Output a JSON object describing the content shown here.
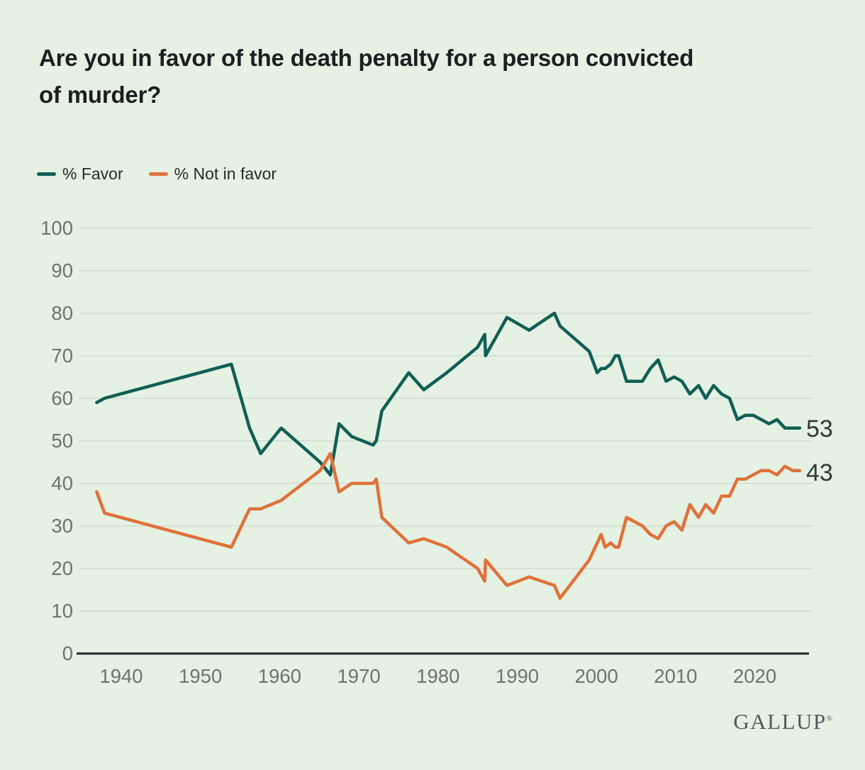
{
  "header": {
    "title": "Are you in favor of the death penalty for a person convicted of murder?"
  },
  "legend": {
    "items": [
      {
        "label": "% Favor",
        "color": "#115e54"
      },
      {
        "label": "% Not in favor",
        "color": "#e0713a"
      }
    ]
  },
  "chart_data": {
    "type": "line",
    "title": "Are you in favor of the death penalty for a person convicted of murder?",
    "xlabel": "",
    "ylabel": "",
    "xlim": [
      1935,
      2026
    ],
    "ylim": [
      0,
      100
    ],
    "x_ticks": [
      1940,
      1950,
      1960,
      1970,
      1980,
      1990,
      2000,
      2010,
      2020
    ],
    "y_ticks": [
      0,
      10,
      20,
      30,
      40,
      50,
      60,
      70,
      80,
      90,
      100
    ],
    "grid": "horizontal",
    "legend_position": "top-left",
    "x": [
      1936.9,
      1937.9,
      1953.9,
      1956.2,
      1957.6,
      1960.2,
      1965.1,
      1966.4,
      1967.5,
      1969.1,
      1971.8,
      1972.2,
      1972.9,
      1976.3,
      1978.2,
      1981.1,
      1985.0,
      1985.9,
      1986.0,
      1988.7,
      1991.5,
      1994.7,
      1995.4,
      1999.1,
      2000.1,
      2000.6,
      2001.1,
      2001.8,
      2002.4,
      2002.8,
      2003.8,
      2004.8,
      2005.8,
      2006.8,
      2007.8,
      2008.8,
      2009.8,
      2010.8,
      2011.8,
      2012.9,
      2013.8,
      2014.8,
      2015.8,
      2016.8,
      2017.8,
      2018.8,
      2019.8,
      2020.8,
      2021.8,
      2022.8,
      2023.8,
      2024.8
    ],
    "series": [
      {
        "name": "% Favor",
        "color": "#115e54",
        "end_label": "53",
        "values": [
          59,
          60,
          68,
          53,
          47,
          53,
          45,
          42,
          54,
          51,
          49,
          50,
          57,
          66,
          62,
          66,
          72,
          75,
          70,
          79,
          76,
          80,
          77,
          71,
          66,
          67,
          67,
          68,
          70,
          70,
          64,
          64,
          64,
          67,
          69,
          64,
          65,
          64,
          61,
          63,
          60,
          63,
          61,
          60,
          55,
          56,
          56,
          55,
          54,
          55,
          53,
          53
        ]
      },
      {
        "name": "% Not in favor",
        "color": "#e0713a",
        "end_label": "43",
        "values": [
          38,
          33,
          25,
          34,
          34,
          36,
          43,
          47,
          38,
          40,
          40,
          41,
          32,
          26,
          27,
          25,
          20,
          17,
          22,
          16,
          18,
          16,
          13,
          22,
          26,
          28,
          25,
          26,
          25,
          25,
          32,
          31,
          30,
          28,
          27,
          30,
          31,
          29,
          35,
          32,
          35,
          33,
          37,
          37,
          41,
          41,
          42,
          43,
          43,
          42,
          44,
          43
        ]
      }
    ]
  },
  "colors": {
    "background": "#e4f1e3",
    "grid": "#d2dbd0",
    "axis": "#202428",
    "tick_label": "#6e7270",
    "title": "#1c1e21",
    "end_label": "#333739",
    "logo": "#55585c"
  },
  "footer": {
    "logo": "GALLUP",
    "registered_mark": "®"
  }
}
